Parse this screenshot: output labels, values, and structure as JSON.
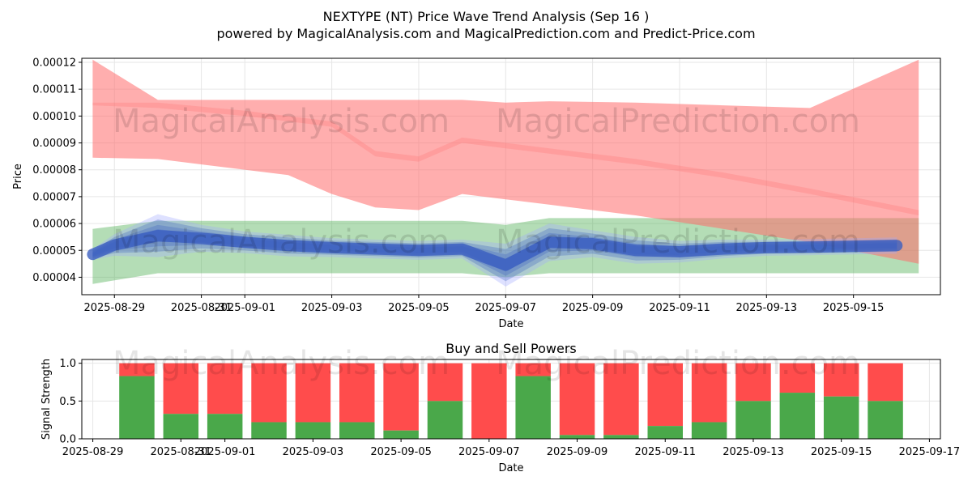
{
  "title_line1": "NEXTYPE (NT) Price Wave Trend Analysis (Sep 16 )",
  "title_line2": "powered by MagicalAnalysis.com and MagicalPrediction.com and Predict-Price.com",
  "watermarks": [
    "MagicalAnalysis.com",
    "MagicalPrediction.com"
  ],
  "colors": {
    "red_band": "#ff6b6b",
    "green_band": "#4caf50",
    "blue_wave": "#3b5fc0",
    "buy_bar": "#4aa84a",
    "sell_bar": "#ff4c4c",
    "grid": "#e6e6e6"
  },
  "chart_data": [
    {
      "type": "area",
      "xlabel": "Date",
      "ylabel": "Price",
      "ylim": [
        3.35e-05,
        0.0001215
      ],
      "xlim": [
        "2025-08-28T06:00",
        "2025-09-17T00:00"
      ],
      "y_ticks": [
        "0.00004",
        "0.00005",
        "0.00006",
        "0.00007",
        "0.00008",
        "0.00009",
        "0.00010",
        "0.00011",
        "0.00012"
      ],
      "y_tick_values": [
        4e-05,
        5e-05,
        6e-05,
        7e-05,
        8e-05,
        9e-05,
        0.0001,
        0.00011,
        0.00012
      ],
      "x_ticks": [
        "2025-08-29",
        "2025-08-31",
        "2025-09-01",
        "2025-09-03",
        "2025-09-05",
        "2025-09-07",
        "2025-09-09",
        "2025-09-11",
        "2025-09-13",
        "2025-09-15"
      ],
      "x_tick_dates": [
        "2025-08-29",
        "2025-08-31",
        "2025-09-01",
        "2025-09-03",
        "2025-09-05",
        "2025-09-07",
        "2025-09-09",
        "2025-09-11",
        "2025-09-13",
        "2025-09-15"
      ],
      "grid": true,
      "red_band": {
        "x": [
          "2025-08-28T12:00",
          "2025-08-30",
          "2025-09-02",
          "2025-09-03",
          "2025-09-04",
          "2025-09-05",
          "2025-09-06",
          "2025-09-07",
          "2025-09-08",
          "2025-09-10",
          "2025-09-12",
          "2025-09-14",
          "2025-09-16T12:00"
        ],
        "upper": [
          0.000121,
          0.000106,
          0.000106,
          0.000106,
          0.000106,
          0.000106,
          0.000106,
          0.000105,
          0.0001055,
          0.000105,
          0.000104,
          0.000103,
          0.000121
        ],
        "lower": [
          8.45e-05,
          8.4e-05,
          7.8e-05,
          7.1e-05,
          6.6e-05,
          6.5e-05,
          7.1e-05,
          6.9e-05,
          6.7e-05,
          6.3e-05,
          5.8e-05,
          5.3e-05,
          4.5e-05
        ]
      },
      "red_band_2": {
        "x": [
          "2025-08-28T12:00",
          "2025-08-30",
          "2025-09-01",
          "2025-09-03",
          "2025-09-04",
          "2025-09-05",
          "2025-09-06",
          "2025-09-07",
          "2025-09-08",
          "2025-09-10",
          "2025-09-12",
          "2025-09-14",
          "2025-09-16T12:00"
        ],
        "upper": [
          0.000105,
          0.000105,
          0.000102,
          9.8e-05,
          8.7e-05,
          8.5e-05,
          9.2e-05,
          9e-05,
          8.8e-05,
          8.4e-05,
          7.9e-05,
          7.3e-05,
          6.5e-05
        ],
        "lower": [
          0.000104,
          0.000103,
          0.0001,
          9.6e-05,
          8.5e-05,
          8.3e-05,
          9e-05,
          8.8e-05,
          8.6e-05,
          8.2e-05,
          7.7e-05,
          7.1e-05,
          6.3e-05
        ]
      },
      "green_band": {
        "x": [
          "2025-08-28T12:00",
          "2025-08-30",
          "2025-09-01",
          "2025-09-03",
          "2025-09-05",
          "2025-09-06",
          "2025-09-07",
          "2025-09-08",
          "2025-09-10",
          "2025-09-12",
          "2025-09-14",
          "2025-09-16T12:00"
        ],
        "upper": [
          5.8e-05,
          6.1e-05,
          6.1e-05,
          6.1e-05,
          6.1e-05,
          6.1e-05,
          5.95e-05,
          6.2e-05,
          6.2e-05,
          6.2e-05,
          6.2e-05,
          6.2e-05
        ],
        "lower": [
          3.75e-05,
          4.15e-05,
          4.15e-05,
          4.15e-05,
          4.15e-05,
          4.15e-05,
          4e-05,
          4.15e-05,
          4.15e-05,
          4.15e-05,
          4.15e-05,
          4.15e-05
        ]
      },
      "blue_wave": {
        "x": [
          "2025-08-28T12:00",
          "2025-08-29",
          "2025-08-30",
          "2025-08-31",
          "2025-09-01",
          "2025-09-02",
          "2025-09-03",
          "2025-09-04",
          "2025-09-05",
          "2025-09-06",
          "2025-09-07",
          "2025-09-08",
          "2025-09-09",
          "2025-09-10",
          "2025-09-11",
          "2025-09-12",
          "2025-09-13",
          "2025-09-14",
          "2025-09-15",
          "2025-09-16"
        ],
        "center": [
          4.85e-05,
          5.2e-05,
          5.55e-05,
          5.45e-05,
          5.3e-05,
          5.18e-05,
          5.1e-05,
          5.05e-05,
          5e-05,
          5.05e-05,
          4.45e-05,
          5.3e-05,
          5.25e-05,
          5e-05,
          4.95e-05,
          5.05e-05,
          5.1e-05,
          5.12e-05,
          5.15e-05,
          5.18e-05
        ],
        "spread": [
          2e-06,
          4e-06,
          8e-06,
          5e-06,
          4e-06,
          4e-06,
          3.5e-06,
          3.5e-06,
          3.5e-06,
          3.5e-06,
          8e-06,
          7e-06,
          5e-06,
          5e-06,
          4e-06,
          3.5e-06,
          3e-06,
          3e-06,
          3e-06,
          3e-06
        ]
      }
    },
    {
      "type": "bar",
      "title": "Buy and Sell Powers",
      "xlabel": "Date",
      "ylabel": "Signal Strength",
      "ylim": [
        0,
        1.05
      ],
      "xlim": [
        "2025-08-28T18:00",
        "2025-09-17T06:00"
      ],
      "y_ticks": [
        "0.0",
        "0.5",
        "1.0"
      ],
      "y_tick_values": [
        0,
        0.5,
        1.0
      ],
      "x_ticks": [
        "2025-08-29",
        "2025-08-31",
        "2025-09-01",
        "2025-09-03",
        "2025-09-05",
        "2025-09-07",
        "2025-09-09",
        "2025-09-11",
        "2025-09-13",
        "2025-09-15",
        "2025-09-17"
      ],
      "x_tick_dates": [
        "2025-08-29",
        "2025-08-31",
        "2025-09-01",
        "2025-09-03",
        "2025-09-05",
        "2025-09-07",
        "2025-09-09",
        "2025-09-11",
        "2025-09-13",
        "2025-09-15",
        "2025-09-17"
      ],
      "categories": [
        "2025-08-30",
        "2025-08-31",
        "2025-09-01",
        "2025-09-02",
        "2025-09-03",
        "2025-09-04",
        "2025-09-05",
        "2025-09-06",
        "2025-09-07",
        "2025-09-08",
        "2025-09-09",
        "2025-09-10",
        "2025-09-11",
        "2025-09-12",
        "2025-09-13",
        "2025-09-14",
        "2025-09-15",
        "2025-09-16"
      ],
      "buy": [
        0.83,
        0.33,
        0.33,
        0.22,
        0.22,
        0.22,
        0.11,
        0.5,
        0.0,
        0.83,
        0.05,
        0.05,
        0.17,
        0.22,
        0.5,
        0.61,
        0.56,
        0.5
      ],
      "grid": true
    }
  ]
}
